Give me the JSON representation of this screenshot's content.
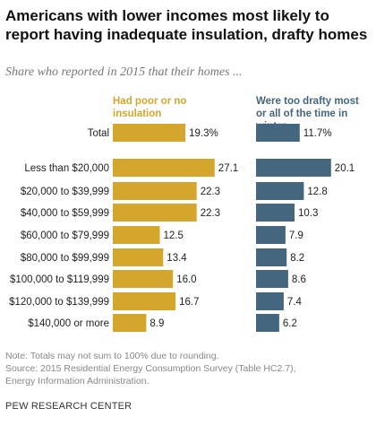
{
  "title": "Americans with lower incomes most likely to report having inadequate insulation, drafty homes",
  "subtitle": "Share who reported in 2015 that their homes ...",
  "colors": {
    "series1": "#d4a72c",
    "series2": "#44677f"
  },
  "chart_data": {
    "type": "bar",
    "orientation": "horizontal",
    "categories": [
      "Total",
      "Less than $20,000",
      "$20,000 to $39,999",
      "$40,000 to $59,999",
      "$60,000 to $79,999",
      "$80,000 to $99,999",
      "$100,000 to $119,999",
      "$120,000 to $139,999",
      "$140,000 or more"
    ],
    "series": [
      {
        "name": "Had poor or no insulation",
        "values": [
          19.3,
          27.1,
          22.3,
          22.3,
          12.5,
          13.4,
          16.0,
          16.7,
          8.9
        ],
        "labels": [
          "19.3%",
          "27.1",
          "22.3",
          "22.3",
          "12.5",
          "13.4",
          "16.0",
          "16.7",
          "8.9"
        ]
      },
      {
        "name": "Were too drafty most or all of the time in winter",
        "values": [
          11.7,
          20.1,
          12.8,
          10.3,
          7.9,
          8.2,
          8.6,
          7.4,
          6.2
        ],
        "labels": [
          "11.7%",
          "20.1",
          "12.8",
          "10.3",
          "7.9",
          "8.2",
          "8.6",
          "7.4",
          "6.2"
        ]
      }
    ]
  },
  "note": "Note: Totals may not sum to 100% due to rounding.",
  "source_lines": [
    "Source: 2015 Residential Energy Consumption Survey (Table HC2.7),",
    "Energy Information Administration."
  ],
  "brand": "PEW RESEARCH CENTER"
}
